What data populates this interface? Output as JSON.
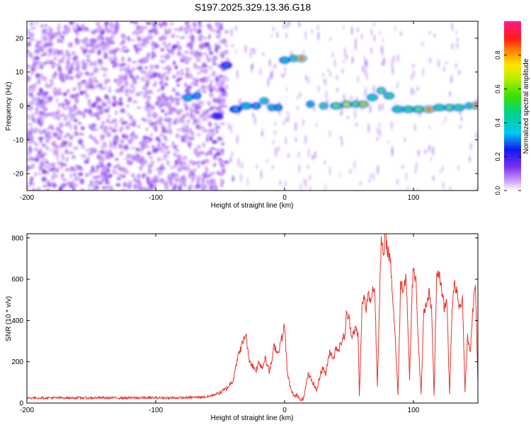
{
  "title": "S197.2025.329.13.36.G18",
  "chart_data": [
    {
      "type": "heatmap",
      "xlabel": "Height of straight line (km)",
      "ylabel": "Frequency (Hz)",
      "xlim": [
        -200,
        150
      ],
      "ylim": [
        -25,
        25
      ],
      "xticks": [
        -200,
        -100,
        0,
        100
      ],
      "yticks": [
        -20,
        -10,
        0,
        10,
        20
      ],
      "colorbar": {
        "label": "Normalized spectral amplitude",
        "range": [
          0,
          1
        ],
        "ticks": [
          0.0,
          0.2,
          0.4,
          0.6,
          0.8
        ],
        "tick_labels": [
          "0.0",
          "0.2",
          "0.4",
          "0.6",
          "0.8"
        ]
      },
      "ridge": [
        {
          "x": -75,
          "y": 2.5,
          "amp": 0.45
        },
        {
          "x": -68,
          "y": 3,
          "amp": 0.4
        },
        {
          "x": -52,
          "y": -3,
          "amp": 0.25
        },
        {
          "x": -45,
          "y": 12,
          "amp": 0.3
        },
        {
          "x": -38,
          "y": -1,
          "amp": 0.35
        },
        {
          "x": -30,
          "y": 0,
          "amp": 0.45
        },
        {
          "x": -22,
          "y": 0,
          "amp": 0.4
        },
        {
          "x": -16,
          "y": 1.5,
          "amp": 0.5
        },
        {
          "x": -10,
          "y": -0.5,
          "amp": 0.45
        },
        {
          "x": -5,
          "y": -0.5,
          "amp": 0.4
        },
        {
          "x": 0,
          "y": 13.5,
          "amp": 0.45
        },
        {
          "x": 7,
          "y": 14,
          "amp": 0.55
        },
        {
          "x": 13,
          "y": 14,
          "amp": 0.9
        },
        {
          "x": 20,
          "y": 0.5,
          "amp": 0.45
        },
        {
          "x": 30,
          "y": 0,
          "amp": 0.55
        },
        {
          "x": 40,
          "y": 0,
          "amp": 0.6
        },
        {
          "x": 48,
          "y": 0.5,
          "amp": 0.75
        },
        {
          "x": 55,
          "y": 0.5,
          "amp": 0.6
        },
        {
          "x": 61,
          "y": 0.5,
          "amp": 0.8
        },
        {
          "x": 68,
          "y": 2.5,
          "amp": 0.5
        },
        {
          "x": 75,
          "y": 4.5,
          "amp": 0.6
        },
        {
          "x": 81,
          "y": 3,
          "amp": 0.55
        },
        {
          "x": 88,
          "y": -1,
          "amp": 0.5
        },
        {
          "x": 96,
          "y": -1,
          "amp": 0.55
        },
        {
          "x": 104,
          "y": -1,
          "amp": 0.6
        },
        {
          "x": 112,
          "y": -1,
          "amp": 0.9
        },
        {
          "x": 120,
          "y": -0.5,
          "amp": 0.55
        },
        {
          "x": 128,
          "y": -0.5,
          "amp": 0.6
        },
        {
          "x": 135,
          "y": -0.5,
          "amp": 0.55
        },
        {
          "x": 143,
          "y": 0,
          "amp": 0.5
        },
        {
          "x": 148,
          "y": 0,
          "amp": 0.85
        }
      ]
    },
    {
      "type": "line",
      "xlabel": "Height of straight line (km)",
      "ylabel": "SNR (10 * v/v)",
      "xlim": [
        -200,
        150
      ],
      "ylim": [
        0,
        820
      ],
      "xticks": [
        -200,
        -100,
        0,
        100
      ],
      "yticks": [
        0,
        200,
        400,
        600,
        800
      ],
      "series": [
        {
          "color": "#e8332a",
          "x": [
            -200,
            -180,
            -160,
            -140,
            -120,
            -100,
            -80,
            -60,
            -50,
            -45,
            -40,
            -38,
            -35,
            -32,
            -30,
            -28,
            -25,
            -22,
            -20,
            -17,
            -15,
            -12,
            -10,
            -8,
            -5,
            -3,
            -1,
            0,
            2,
            5,
            8,
            10,
            12,
            15,
            18,
            20,
            22,
            25,
            28,
            30,
            32,
            35,
            38,
            40,
            42,
            45,
            47,
            48,
            50,
            52,
            55,
            57,
            58,
            60,
            62,
            63,
            65,
            67,
            68,
            70,
            72,
            74,
            75,
            77,
            78,
            80,
            82,
            84,
            86,
            88,
            90,
            92,
            94,
            95,
            97,
            99,
            100,
            102,
            104,
            106,
            108,
            110,
            112,
            114,
            116,
            118,
            120,
            122,
            124,
            126,
            128,
            130,
            132,
            134,
            136,
            138,
            140,
            142,
            144,
            146,
            148,
            150
          ],
          "y": [
            25,
            25,
            25,
            25,
            25,
            25,
            25,
            30,
            50,
            70,
            110,
            180,
            250,
            300,
            340,
            220,
            180,
            160,
            200,
            170,
            230,
            150,
            200,
            280,
            240,
            300,
            340,
            380,
            150,
            60,
            30,
            40,
            20,
            25,
            140,
            120,
            100,
            60,
            150,
            170,
            140,
            250,
            220,
            270,
            260,
            310,
            330,
            430,
            410,
            330,
            360,
            330,
            30,
            460,
            520,
            440,
            530,
            480,
            560,
            540,
            80,
            600,
            780,
            700,
            820,
            740,
            700,
            500,
            300,
            40,
            580,
            560,
            620,
            500,
            120,
            560,
            650,
            580,
            260,
            40,
            440,
            480,
            540,
            450,
            40,
            600,
            620,
            550,
            460,
            500,
            40,
            470,
            580,
            520,
            450,
            520,
            60,
            330,
            240,
            440,
            600,
            100
          ]
        }
      ]
    }
  ]
}
